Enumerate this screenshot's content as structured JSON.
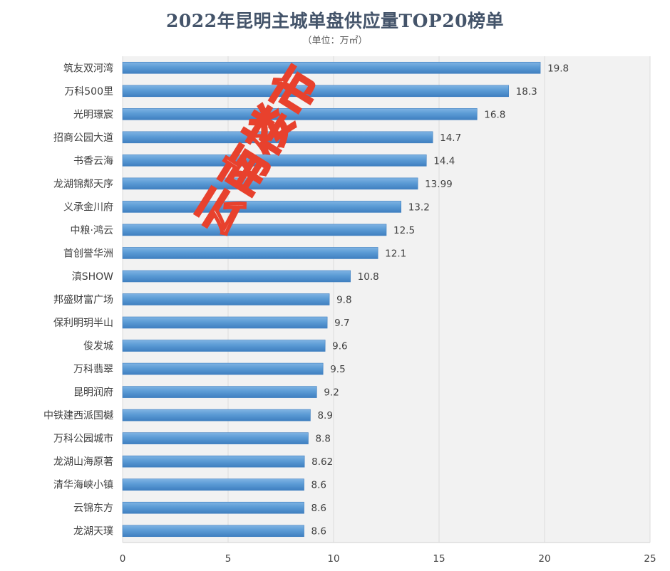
{
  "chart_title": "2022年昆明主城单盘供应量TOP20榜单",
  "chart_subtitle": "（单位：万㎡）",
  "colors": {
    "bar": "#5b9bd5",
    "bar_dark": "#3f7fc0",
    "plot_bg": "#f2f2f2",
    "grid": "#dcdcdc",
    "watermark_stroke": "#e8412d"
  },
  "watermark_text": "云南楼市",
  "chart_data": {
    "type": "bar",
    "orientation": "horizontal",
    "title": "2022年昆明主城单盘供应量TOP20榜单",
    "subtitle": "（单位：万㎡）",
    "categories": [
      "筑友双河湾",
      "万科500里",
      "光明璟宸",
      "招商公园大道",
      "书香云海",
      "龙湖锦鄰天序",
      "义承金川府",
      "中粮·鸿云",
      "首创誉华洲",
      "滇SHOW",
      "邦盛财富广场",
      "保利明玥半山",
      "俊发城",
      "万科翡翠",
      "昆明润府",
      "中铁建西派国樾",
      "万科公园城市",
      "龙湖山海原著",
      "清华海峡小镇",
      "云锦东方",
      "龙湖天璞"
    ],
    "values": [
      19.8,
      18.3,
      16.8,
      14.7,
      14.4,
      13.99,
      13.2,
      12.5,
      12.1,
      10.8,
      9.8,
      9.7,
      9.6,
      9.5,
      9.2,
      8.9,
      8.8,
      8.62,
      8.6,
      8.6,
      8.6
    ],
    "value_labels": [
      "19.8",
      "18.3",
      "16.8",
      "14.7",
      "14.4",
      "13.99",
      "13.2",
      "12.5",
      "12.1",
      "10.8",
      "9.8",
      "9.7",
      "9.6",
      "9.5",
      "9.2",
      "8.9",
      "8.8",
      "8.62",
      "8.6",
      "8.6",
      "8.6"
    ],
    "x_ticks": [
      "0",
      "5",
      "10",
      "15",
      "20",
      "25"
    ],
    "xlim": [
      0,
      25
    ],
    "grid": true
  }
}
